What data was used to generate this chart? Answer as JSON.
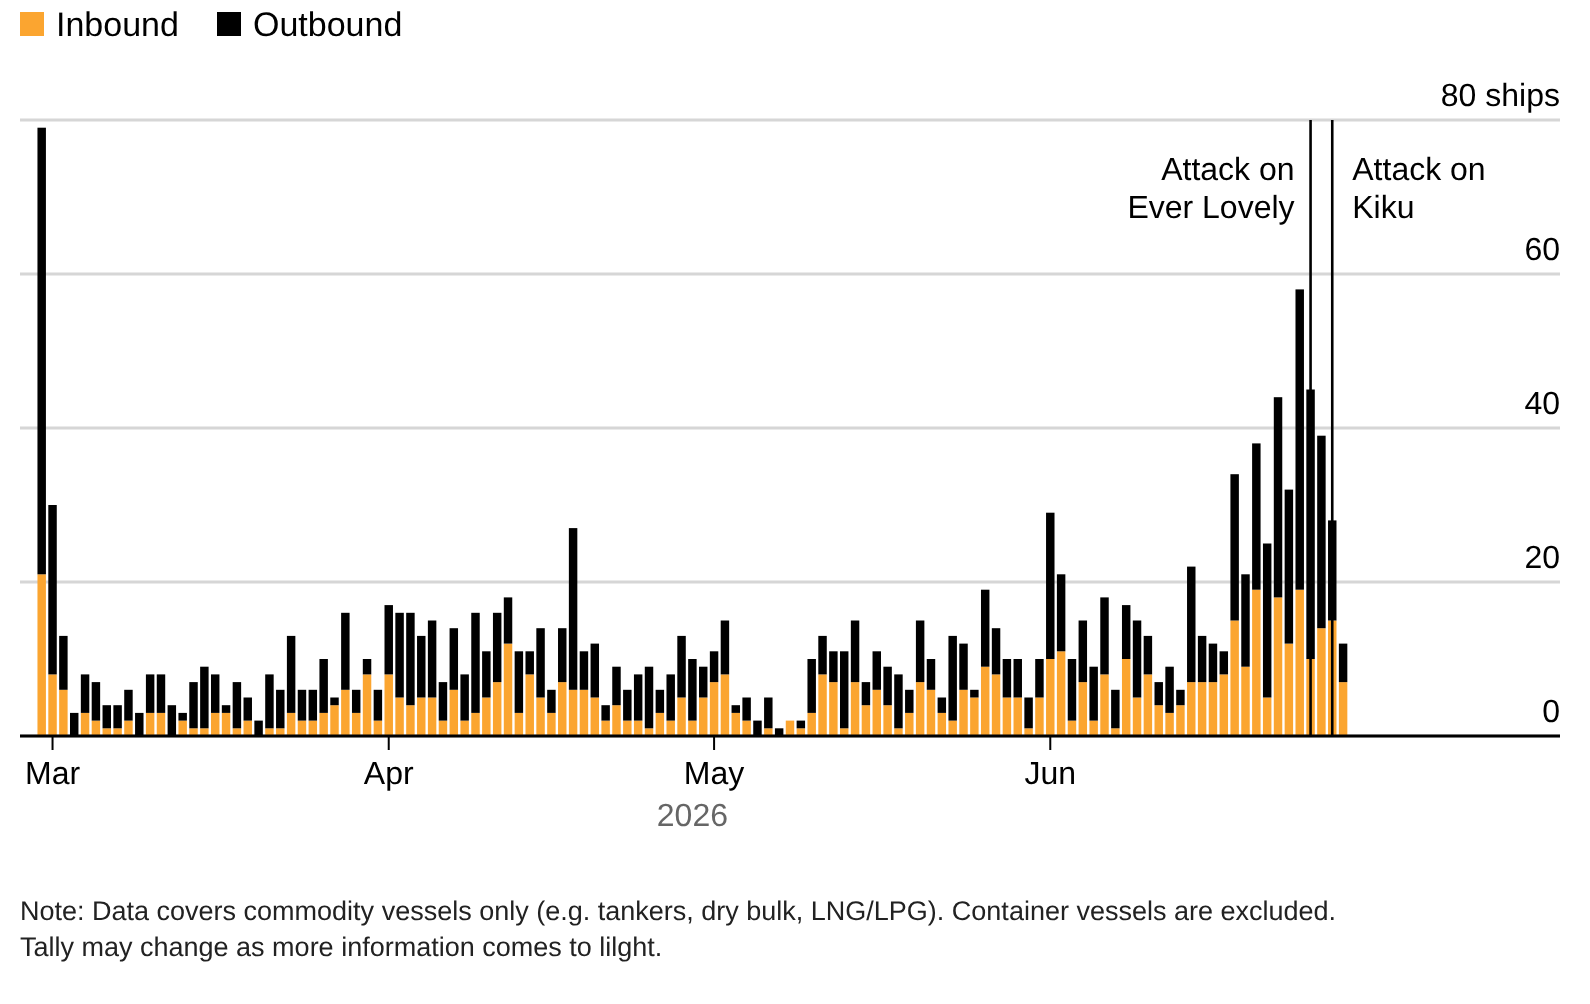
{
  "chart_data": {
    "type": "bar",
    "stacked": true,
    "xlabel": "2026",
    "x": [
      "2026-02-28",
      "2026-03-01",
      "2026-03-02",
      "2026-03-03",
      "2026-03-04",
      "2026-03-05",
      "2026-03-06",
      "2026-03-07",
      "2026-03-08",
      "2026-03-09",
      "2026-03-10",
      "2026-03-11",
      "2026-03-12",
      "2026-03-13",
      "2026-03-14",
      "2026-03-15",
      "2026-03-16",
      "2026-03-17",
      "2026-03-18",
      "2026-03-19",
      "2026-03-20",
      "2026-03-21",
      "2026-03-22",
      "2026-03-23",
      "2026-03-24",
      "2026-03-25",
      "2026-03-26",
      "2026-03-27",
      "2026-03-28",
      "2026-03-29",
      "2026-03-30",
      "2026-03-31",
      "2026-04-01",
      "2026-04-02",
      "2026-04-03",
      "2026-04-04",
      "2026-04-05",
      "2026-04-06",
      "2026-04-07",
      "2026-04-08",
      "2026-04-09",
      "2026-04-10",
      "2026-04-11",
      "2026-04-12",
      "2026-04-13",
      "2026-04-14",
      "2026-04-15",
      "2026-04-16",
      "2026-04-17",
      "2026-04-18",
      "2026-04-19",
      "2026-04-20",
      "2026-04-21",
      "2026-04-22",
      "2026-04-23",
      "2026-04-24",
      "2026-04-25",
      "2026-04-26",
      "2026-04-27",
      "2026-04-28",
      "2026-04-29",
      "2026-04-30",
      "2026-05-01",
      "2026-05-02",
      "2026-05-03",
      "2026-05-04",
      "2026-05-05",
      "2026-05-06",
      "2026-05-07",
      "2026-05-08",
      "2026-05-09",
      "2026-05-10",
      "2026-05-11",
      "2026-05-12",
      "2026-05-13",
      "2026-05-14",
      "2026-05-15",
      "2026-05-16",
      "2026-05-17",
      "2026-05-18",
      "2026-05-19",
      "2026-05-20",
      "2026-05-21",
      "2026-05-22",
      "2026-05-23",
      "2026-05-24",
      "2026-05-25",
      "2026-05-26",
      "2026-05-27",
      "2026-05-28",
      "2026-05-29",
      "2026-05-30",
      "2026-05-31",
      "2026-06-01",
      "2026-06-02",
      "2026-06-03",
      "2026-06-04",
      "2026-06-05",
      "2026-06-06",
      "2026-06-07",
      "2026-06-08",
      "2026-06-09",
      "2026-06-10",
      "2026-06-11",
      "2026-06-12",
      "2026-06-13",
      "2026-06-14",
      "2026-06-15",
      "2026-06-16",
      "2026-06-17",
      "2026-06-18",
      "2026-06-19",
      "2026-06-20",
      "2026-06-21",
      "2026-06-22",
      "2026-06-23",
      "2026-06-24",
      "2026-06-25",
      "2026-06-26",
      "2026-06-27",
      "2026-06-28"
    ],
    "series": [
      {
        "name": "Inbound",
        "color": "#fba530",
        "values": [
          21,
          8,
          6,
          0,
          3,
          2,
          1,
          1,
          2,
          0,
          3,
          3,
          0,
          2,
          1,
          1,
          3,
          3,
          1,
          2,
          0,
          1,
          1,
          3,
          2,
          2,
          3,
          4,
          6,
          3,
          8,
          2,
          8,
          5,
          4,
          5,
          5,
          2,
          6,
          2,
          3,
          5,
          7,
          12,
          3,
          8,
          5,
          3,
          7,
          6,
          6,
          5,
          2,
          4,
          2,
          2,
          1,
          3,
          2,
          5,
          2,
          5,
          7,
          8,
          3,
          2,
          0,
          1,
          0,
          2,
          1,
          3,
          8,
          7,
          1,
          7,
          4,
          6,
          4,
          1,
          3,
          7,
          6,
          3,
          2,
          6,
          5,
          9,
          8,
          5,
          5,
          1,
          5,
          10,
          11,
          2,
          7,
          2,
          8,
          1,
          10,
          5,
          8,
          4,
          3,
          4,
          7,
          7,
          7,
          8,
          15,
          9,
          19,
          5,
          18,
          12,
          19,
          10,
          14,
          15,
          7
        ]
      },
      {
        "name": "Outbound",
        "color": "#000000",
        "values": [
          58,
          22,
          7,
          3,
          5,
          5,
          3,
          3,
          4,
          3,
          5,
          5,
          4,
          1,
          6,
          8,
          5,
          1,
          6,
          3,
          2,
          7,
          5,
          10,
          4,
          4,
          7,
          1,
          10,
          3,
          2,
          4,
          9,
          11,
          12,
          8,
          10,
          5,
          8,
          6,
          13,
          6,
          9,
          6,
          8,
          3,
          9,
          3,
          7,
          21,
          5,
          7,
          2,
          5,
          4,
          6,
          8,
          3,
          6,
          8,
          8,
          4,
          4,
          7,
          1,
          3,
          2,
          4,
          1,
          0,
          1,
          7,
          5,
          4,
          10,
          8,
          3,
          5,
          5,
          7,
          3,
          8,
          4,
          2,
          11,
          6,
          1,
          10,
          6,
          5,
          5,
          4,
          5,
          19,
          10,
          8,
          8,
          7,
          10,
          5,
          7,
          10,
          5,
          3,
          6,
          2,
          15,
          6,
          5,
          3,
          19,
          12,
          19,
          20,
          26,
          20,
          39,
          35,
          25,
          13,
          5
        ]
      }
    ],
    "xlim": [
      "2026-02-26",
      "2026-07-18"
    ],
    "xticks": [
      {
        "value": "2026-03-01",
        "label": "Mar"
      },
      {
        "value": "2026-04-01",
        "label": "Apr"
      },
      {
        "value": "2026-05-01",
        "label": "May"
      },
      {
        "value": "2026-06-01",
        "label": "Jun"
      }
    ],
    "ylim": [
      0,
      80
    ],
    "yticks": [
      0,
      20,
      40,
      60,
      {
        "value": 80,
        "label": "80 ships"
      }
    ],
    "grid": "y",
    "legend": "top left",
    "ref_lines": [
      {
        "axis": "x",
        "value": "2026-06-25",
        "label": "Attack on Ever Lovely",
        "color": "#000000"
      },
      {
        "axis": "x",
        "value": "2026-06-27",
        "label": "Attack on Kiku",
        "color": "#000000"
      }
    ],
    "annotations": [
      "Note: Data covers commodity vessels only (e.g. tankers, dry bulk, LNG/LPG). Container vessels are excluded.",
      "Tally may change as more information comes to lilght."
    ]
  }
}
